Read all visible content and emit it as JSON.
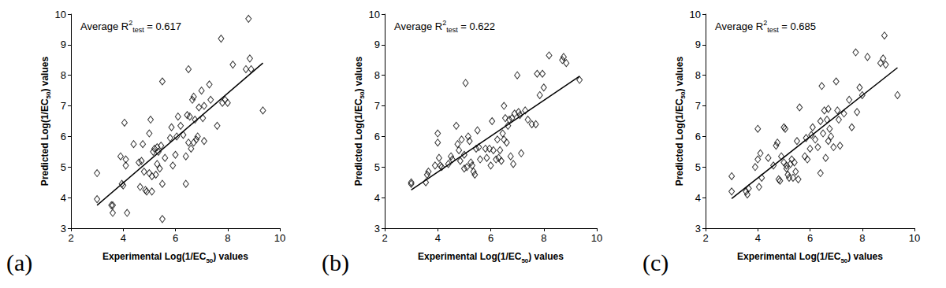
{
  "chart_data": [
    {
      "type": "scatter",
      "panel_label": "(a)",
      "annotation": {
        "text": "Average R",
        "superscript": "2",
        "subscript": "test",
        "suffix": " = 0.617"
      },
      "xlabel": {
        "text": "Experimental Log(1/EC",
        "subscript": "50",
        "suffix": ") values"
      },
      "ylabel": {
        "text": "Predicted Log(1/EC",
        "subscript": "50",
        "suffix": ") values"
      },
      "x": [
        3.0,
        3.0,
        3.55,
        3.6,
        3.6,
        3.9,
        3.95,
        4.0,
        4.05,
        4.1,
        4.1,
        4.15,
        4.4,
        4.6,
        4.65,
        4.7,
        4.75,
        4.8,
        4.85,
        4.9,
        5.0,
        5.0,
        5.05,
        5.1,
        5.1,
        5.15,
        5.2,
        5.25,
        5.3,
        5.3,
        5.35,
        5.4,
        5.45,
        5.5,
        5.5,
        5.5,
        5.6,
        5.8,
        5.85,
        5.9,
        6.0,
        6.05,
        6.1,
        6.2,
        6.3,
        6.4,
        6.4,
        6.45,
        6.5,
        6.5,
        6.55,
        6.6,
        6.65,
        6.7,
        6.7,
        6.75,
        6.8,
        6.85,
        6.9,
        7.0,
        7.05,
        7.1,
        7.1,
        7.3,
        7.35,
        7.6,
        7.75,
        7.8,
        7.9,
        8.0,
        8.2,
        8.7,
        8.8,
        8.85,
        8.9,
        9.35
      ],
      "values": [
        3.95,
        4.8,
        3.75,
        3.75,
        3.5,
        5.35,
        4.45,
        4.4,
        6.45,
        5.25,
        5.05,
        3.5,
        5.75,
        5.15,
        4.35,
        5.2,
        5.75,
        4.85,
        4.25,
        4.2,
        4.8,
        6.1,
        6.55,
        4.7,
        4.2,
        5.5,
        5.6,
        4.75,
        5.65,
        5.1,
        5.5,
        4.95,
        5.7,
        7.8,
        4.45,
        3.3,
        5.3,
        5.95,
        6.3,
        5.05,
        5.4,
        6.0,
        6.65,
        6.35,
        6.05,
        4.45,
        5.35,
        6.7,
        8.2,
        5.8,
        6.65,
        5.6,
        7.2,
        7.3,
        5.8,
        6.55,
        5.9,
        6.0,
        6.95,
        7.5,
        6.6,
        7.0,
        5.85,
        7.7,
        7.2,
        6.35,
        9.2,
        7.1,
        7.2,
        7.1,
        8.35,
        8.2,
        9.85,
        8.55,
        8.2,
        6.85
      ],
      "fit_line": {
        "x": [
          3.0,
          9.35
        ],
        "values": [
          3.75,
          8.4
        ]
      },
      "xlim": [
        2,
        10
      ],
      "xticks": [
        2,
        4,
        6,
        8,
        10
      ],
      "ylim": [
        3,
        10
      ],
      "yticks": [
        3,
        4,
        5,
        6,
        7,
        8,
        9,
        10
      ],
      "color": "#000000",
      "marker": "diamond",
      "grid": false
    },
    {
      "type": "scatter",
      "panel_label": "(b)",
      "annotation": {
        "text": "Average R",
        "superscript": "2",
        "subscript": "test",
        "suffix": " = 0.622"
      },
      "xlabel": {
        "text": "Experimental Log(1/EC",
        "subscript": "50",
        "suffix": ") values"
      },
      "ylabel": {
        "text": "Predicted Log(1/EC",
        "subscript": "50",
        "suffix": ") values"
      },
      "x": [
        3.0,
        3.0,
        3.55,
        3.6,
        3.65,
        3.9,
        4.0,
        4.0,
        4.05,
        4.1,
        4.15,
        4.4,
        4.5,
        4.55,
        4.7,
        4.75,
        4.8,
        4.85,
        4.9,
        5.0,
        5.0,
        5.05,
        5.1,
        5.15,
        5.2,
        5.25,
        5.3,
        5.35,
        5.4,
        5.45,
        5.5,
        5.55,
        5.6,
        5.8,
        5.85,
        5.95,
        6.0,
        6.05,
        6.1,
        6.2,
        6.25,
        6.3,
        6.35,
        6.4,
        6.45,
        6.5,
        6.5,
        6.55,
        6.6,
        6.65,
        6.7,
        6.75,
        6.8,
        6.85,
        6.9,
        7.0,
        7.05,
        7.1,
        7.15,
        7.3,
        7.4,
        7.55,
        7.7,
        7.75,
        7.85,
        7.95,
        8.0,
        8.2,
        8.7,
        8.75,
        8.85,
        9.35
      ],
      "values": [
        4.5,
        4.45,
        4.5,
        4.75,
        4.85,
        5.05,
        6.1,
        5.8,
        5.3,
        5.05,
        5.0,
        5.1,
        5.35,
        5.25,
        6.35,
        5.75,
        5.55,
        5.2,
        5.9,
        5.4,
        4.95,
        7.75,
        5.0,
        6.0,
        5.85,
        5.15,
        5.05,
        4.85,
        4.75,
        5.6,
        6.2,
        5.65,
        5.25,
        5.6,
        5.3,
        5.6,
        5.05,
        6.5,
        5.55,
        5.25,
        5.9,
        5.3,
        5.55,
        5.2,
        6.1,
        7.0,
        5.9,
        6.6,
        5.8,
        6.35,
        6.55,
        5.35,
        6.6,
        5.1,
        6.75,
        8.0,
        6.8,
        6.7,
        5.45,
        6.85,
        6.55,
        6.4,
        6.4,
        8.05,
        7.35,
        8.05,
        7.6,
        8.65,
        8.5,
        8.6,
        8.4,
        7.85
      ],
      "fit_line": {
        "x": [
          3.0,
          9.35
        ],
        "values": [
          4.25,
          7.97
        ]
      },
      "xlim": [
        2,
        10
      ],
      "xticks": [
        2,
        4,
        6,
        8,
        10
      ],
      "ylim": [
        3,
        10
      ],
      "yticks": [
        3,
        4,
        5,
        6,
        7,
        8,
        9,
        10
      ],
      "color": "#000000",
      "marker": "diamond",
      "grid": false
    },
    {
      "type": "scatter",
      "panel_label": "(c)",
      "annotation": {
        "text": "Average R",
        "superscript": "2",
        "subscript": "test",
        "suffix": " = 0.685"
      },
      "xlabel": {
        "text": "Experimental Log(1/EC",
        "subscript": "50",
        "suffix": ") values"
      },
      "ylabel": {
        "text": "Predicted Log(1/EC",
        "subscript": "50",
        "suffix": ") values"
      },
      "x": [
        3.0,
        3.0,
        3.55,
        3.6,
        3.65,
        3.9,
        4.0,
        4.0,
        4.05,
        4.1,
        4.15,
        4.4,
        4.6,
        4.7,
        4.75,
        4.8,
        4.85,
        4.9,
        5.0,
        5.0,
        5.05,
        5.1,
        5.1,
        5.15,
        5.2,
        5.25,
        5.3,
        5.35,
        5.4,
        5.45,
        5.5,
        5.55,
        5.6,
        5.8,
        5.85,
        5.9,
        6.0,
        6.05,
        6.1,
        6.2,
        6.3,
        6.4,
        6.4,
        6.45,
        6.5,
        6.55,
        6.6,
        6.65,
        6.7,
        6.7,
        6.75,
        6.8,
        6.9,
        7.0,
        7.05,
        7.1,
        7.15,
        7.3,
        7.5,
        7.6,
        7.75,
        7.8,
        7.9,
        8.0,
        8.2,
        8.7,
        8.8,
        8.85,
        8.9,
        9.35
      ],
      "values": [
        4.7,
        4.2,
        4.2,
        4.1,
        4.3,
        5.0,
        6.25,
        5.25,
        4.35,
        5.45,
        4.65,
        5.3,
        5.05,
        5.7,
        5.8,
        4.6,
        4.55,
        5.35,
        5.15,
        6.3,
        6.25,
        4.95,
        5.05,
        4.75,
        4.65,
        5.1,
        5.25,
        4.65,
        5.15,
        4.85,
        5.85,
        4.6,
        6.95,
        5.35,
        5.95,
        5.25,
        5.6,
        6.05,
        6.3,
        5.9,
        5.65,
        4.8,
        6.5,
        7.65,
        6.1,
        6.85,
        5.3,
        6.55,
        6.9,
        5.85,
        6.25,
        6.0,
        5.65,
        7.8,
        6.85,
        6.55,
        5.7,
        6.75,
        7.2,
        6.3,
        8.75,
        6.8,
        7.6,
        7.35,
        8.6,
        8.4,
        8.55,
        9.3,
        8.35,
        7.35
      ],
      "fit_line": {
        "x": [
          3.0,
          9.35
        ],
        "values": [
          3.97,
          8.25
        ]
      },
      "xlim": [
        2,
        10
      ],
      "xticks": [
        2,
        4,
        6,
        8,
        10
      ],
      "ylim": [
        3,
        10
      ],
      "yticks": [
        3,
        4,
        5,
        6,
        7,
        8,
        9,
        10
      ],
      "color": "#000000",
      "marker": "diamond",
      "grid": false
    }
  ]
}
